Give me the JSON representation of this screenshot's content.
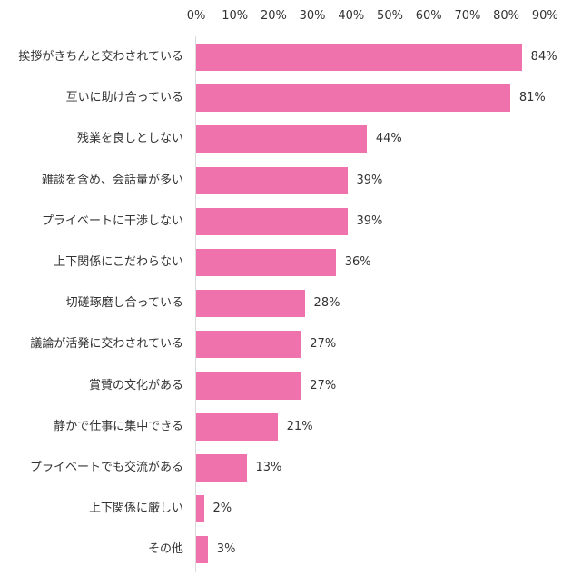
{
  "chart_data": {
    "type": "bar",
    "orientation": "horizontal",
    "title": "",
    "xlabel": "",
    "ylabel": "",
    "xlim": [
      0,
      90
    ],
    "x_ticks": [
      "0%",
      "10%",
      "20%",
      "30%",
      "40%",
      "50%",
      "60%",
      "70%",
      "80%",
      "90%"
    ],
    "grid": false,
    "legend": null,
    "bar_color": "#f072ad",
    "categories": [
      "挨拶がきちんと交わされている",
      "互いに助け合っている",
      "残業を良しとしない",
      "雑談を含め、会話量が多い",
      "プライベートに干渉しない",
      "上下関係にこだわらない",
      "切磋琢磨し合っている",
      "議論が活発に交わされている",
      "賞賛の文化がある",
      "静かで仕事に集中できる",
      "プライベートでも交流がある",
      "上下関係に厳しい",
      "その他"
    ],
    "values": [
      84,
      81,
      44,
      39,
      39,
      36,
      28,
      27,
      27,
      21,
      13,
      2,
      3
    ],
    "value_labels": [
      "84%",
      "81%",
      "44%",
      "39%",
      "39%",
      "36%",
      "28%",
      "27%",
      "27%",
      "21%",
      "13%",
      "2%",
      "3%"
    ]
  }
}
